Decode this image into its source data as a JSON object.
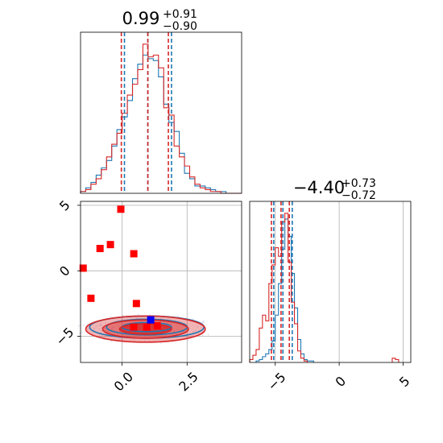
{
  "colors": {
    "red": "#d62728",
    "blue": "#1f77b4",
    "marker_red": "#ff0000",
    "marker_blue": "#0000ff",
    "grid": "#b0b0b0",
    "axes": "#000000"
  },
  "chart_data": [
    {
      "panel": "top-left",
      "type": "histogram",
      "title": {
        "value": "0.99",
        "sup": "+0.91",
        "sub": "−0.90"
      },
      "xlim": [
        -1.6,
        4.6
      ],
      "grid": true,
      "quantile_lines": {
        "blue": [
          0.09,
          0.99,
          1.9
        ],
        "red": [
          -0.03,
          0.99,
          1.78
        ]
      },
      "series": [
        {
          "color": "blue",
          "bin_edges": [
            -1.6,
            -1.4,
            -1.2,
            -1.0,
            -0.8,
            -0.6,
            -0.4,
            -0.2,
            0.0,
            0.2,
            0.4,
            0.6,
            0.8,
            1.0,
            1.2,
            1.4,
            1.6,
            1.8,
            2.0,
            2.2,
            2.4,
            2.6,
            2.8,
            3.0,
            3.2,
            3.4,
            3.6,
            3.8,
            4.0,
            4.2,
            4.4,
            4.6
          ],
          "counts": [
            1,
            3,
            6,
            10,
            14,
            18,
            26,
            35,
            42,
            51,
            63,
            71,
            76,
            74,
            73,
            64,
            49,
            39,
            34,
            22,
            11,
            8,
            4,
            4,
            3,
            2,
            1,
            1,
            0,
            0,
            0
          ]
        },
        {
          "color": "red",
          "bin_edges": [
            -1.6,
            -1.4,
            -1.2,
            -1.0,
            -0.8,
            -0.6,
            -0.4,
            -0.2,
            0.0,
            0.2,
            0.4,
            0.6,
            0.8,
            1.0,
            1.2,
            1.4,
            1.6,
            1.8,
            2.0,
            2.2,
            2.4,
            2.6,
            2.8,
            3.0,
            3.2,
            3.4,
            3.6,
            3.8,
            4.0,
            4.2,
            4.4,
            4.6
          ],
          "counts": [
            1,
            2,
            5,
            8,
            13,
            20,
            27,
            33,
            44,
            54,
            60,
            68,
            82,
            75,
            76,
            69,
            47,
            43,
            26,
            20,
            15,
            9,
            5,
            3,
            2,
            1,
            1,
            0,
            0,
            0,
            0
          ]
        }
      ]
    },
    {
      "panel": "bottom-left",
      "type": "contour",
      "xlim": [
        -1.6,
        4.6
      ],
      "ylim": [
        -7.0,
        5.3
      ],
      "xticks": [
        "0.0",
        "2.5"
      ],
      "xtick_values": [
        0.0,
        2.5
      ],
      "yticks": [
        "−5",
        "0",
        "5"
      ],
      "ytick_values": [
        -5,
        0,
        5
      ],
      "grid": true,
      "contours": [
        {
          "color": "blue",
          "center": [
            0.95,
            -4.3
          ],
          "radii": [
            [
              0.95,
              0.35
            ],
            [
              1.55,
              0.6
            ],
            [
              2.2,
              0.85
            ]
          ]
        },
        {
          "color": "red",
          "center": [
            0.9,
            -4.45
          ],
          "radii": [
            [
              1.0,
              0.4
            ],
            [
              1.65,
              0.7
            ],
            [
              2.3,
              1.0
            ]
          ]
        }
      ],
      "markers": [
        {
          "color": "red",
          "points": [
            [
              -0.05,
              4.7
            ],
            [
              -0.85,
              1.7
            ],
            [
              -0.45,
              2.0
            ],
            [
              0.45,
              1.3
            ],
            [
              -1.5,
              0.2
            ],
            [
              -1.2,
              -2.1
            ],
            [
              0.55,
              -2.5
            ],
            [
              0.45,
              -4.3
            ],
            [
              0.95,
              -4.3
            ],
            [
              1.35,
              -4.2
            ]
          ]
        },
        {
          "color": "blue",
          "points": [
            [
              1.1,
              -3.75
            ]
          ]
        }
      ]
    },
    {
      "panel": "bottom-right",
      "type": "histogram",
      "title": {
        "value": "−4.40",
        "sup": "+0.73",
        "sub": "−0.72"
      },
      "xlim": [
        -7.0,
        5.6
      ],
      "xticks": [
        "−5",
        "0",
        "5"
      ],
      "xtick_values": [
        -5,
        0,
        5
      ],
      "grid": true,
      "quantile_lines": {
        "blue": [
          -5.12,
          -4.4,
          -3.67
        ],
        "red": [
          -5.3,
          -4.55,
          -3.9
        ]
      },
      "series": [
        {
          "color": "blue",
          "bin_edges": [
            -6.5,
            -6.25,
            -6.0,
            -5.75,
            -5.5,
            -5.25,
            -5.0,
            -4.75,
            -4.5,
            -4.25,
            -4.0,
            -3.75,
            -3.5,
            -3.25,
            -3.0,
            -2.75,
            -2.5,
            -2.25,
            -2.0
          ],
          "counts": [
            1,
            2,
            4,
            6,
            9,
            15,
            33,
            55,
            79,
            100,
            88,
            62,
            38,
            16,
            6,
            2,
            1,
            1
          ]
        },
        {
          "color": "red",
          "bin_edges": [
            -7.0,
            -6.75,
            -6.5,
            -6.25,
            -6.0,
            -5.75,
            -5.5,
            -5.25,
            -5.0,
            -4.75,
            -4.5,
            -4.25,
            -4.0,
            -3.75,
            -3.5,
            -3.25,
            -3.0,
            -2.75,
            -2.5
          ],
          "counts": [
            2,
            5,
            9,
            24,
            33,
            29,
            55,
            68,
            80,
            74,
            98,
            104,
            70,
            42,
            27,
            8,
            3,
            1
          ]
        },
        {
          "color": "red",
          "bin_edges": [
            4.15,
            4.4,
            4.65
          ],
          "counts": [
            3,
            2
          ]
        }
      ]
    }
  ]
}
